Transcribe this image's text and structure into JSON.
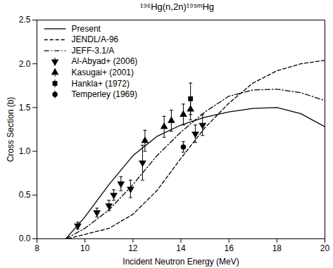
{
  "chart_data": {
    "type": "line",
    "title": "¹⁹⁶Hg(n,2n)¹⁹⁵ᵐHg",
    "x_label": "Incident Neutron Energy (MeV)",
    "y_label": "Cross Section (b)",
    "xlim": [
      8,
      20
    ],
    "ylim": [
      0,
      2.5
    ],
    "xticks": [
      8,
      10,
      12,
      14,
      16,
      18,
      20
    ],
    "yticks": [
      {
        "value": 0,
        "label": "0.0"
      },
      0.5,
      {
        "value": 1,
        "label": "1.0"
      },
      1.5,
      {
        "value": 2,
        "label": "2.0"
      },
      2.5
    ],
    "legend": "upper left",
    "series": [
      {
        "name": "Present",
        "type": "line",
        "color": "#000000",
        "line_style": "solid",
        "x": [
          9.2,
          10,
          11,
          12,
          13,
          14,
          15,
          16,
          17,
          18,
          19,
          20
        ],
        "values": [
          0,
          0.25,
          0.62,
          0.95,
          1.17,
          1.3,
          1.39,
          1.45,
          1.49,
          1.5,
          1.43,
          1.28
        ]
      },
      {
        "name": "JENDL/A-96",
        "type": "line",
        "color": "#000000",
        "line_style": "dashed",
        "x": [
          9.3,
          10,
          11,
          12,
          13,
          14,
          15,
          16,
          17,
          18,
          19,
          20
        ],
        "values": [
          0,
          0.05,
          0.12,
          0.28,
          0.55,
          0.92,
          1.27,
          1.55,
          1.78,
          1.92,
          2.0,
          2.04
        ]
      },
      {
        "name": "JEFF-3.1/A",
        "type": "line",
        "color": "#000000",
        "line_style": "dashdot",
        "x": [
          9.2,
          10,
          11,
          12,
          13,
          14,
          15,
          16,
          17,
          18,
          19,
          20
        ],
        "values": [
          0,
          0.12,
          0.33,
          0.62,
          0.95,
          1.22,
          1.45,
          1.63,
          1.7,
          1.71,
          1.67,
          1.58
        ]
      },
      {
        "name": "Al-Abyad+ (2006)",
        "type": "scatter",
        "color": "#000000",
        "marker": "triangle-down",
        "x": [
          9.7,
          10.5,
          11.0,
          11.2,
          11.5,
          11.9,
          12.4,
          14.6,
          14.9
        ],
        "values": [
          0.15,
          0.3,
          0.38,
          0.5,
          0.63,
          0.57,
          0.87,
          1.2,
          1.3
        ],
        "errors": [
          0.04,
          0.05,
          0.06,
          0.06,
          0.08,
          0.1,
          0.2,
          0.1,
          0.12
        ]
      },
      {
        "name": "Kasugai+ (2001)",
        "type": "scatter",
        "color": "#000000",
        "marker": "triangle",
        "x": [
          12.5,
          13.3,
          13.6,
          14.1,
          14.4
        ],
        "values": [
          1.12,
          1.28,
          1.35,
          1.42,
          1.48
        ],
        "errors": [
          0.12,
          0.12,
          0.12,
          0.12,
          0.12
        ]
      },
      {
        "name": "Hankla+ (1972)",
        "type": "scatter",
        "color": "#000000",
        "marker": "square",
        "x": [
          14.4
        ],
        "values": [
          1.6
        ],
        "errors": [
          0.18
        ]
      },
      {
        "name": "Temperley (1969)",
        "type": "scatter",
        "color": "#000000",
        "marker": "circle",
        "x": [
          14.1
        ],
        "values": [
          1.05
        ],
        "errors": [
          0.06
        ]
      }
    ]
  }
}
